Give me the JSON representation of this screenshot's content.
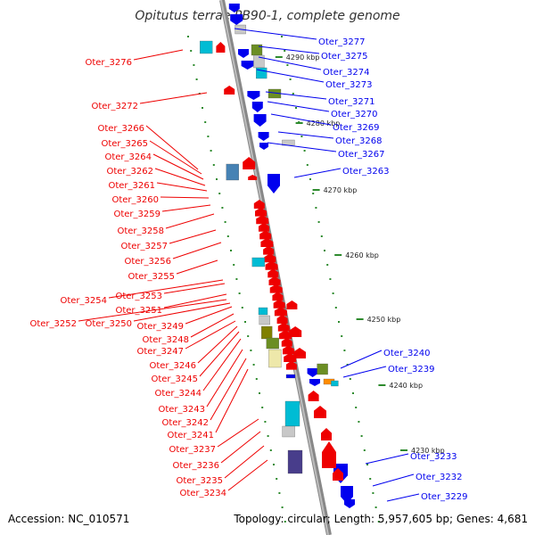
{
  "title": "Opitutus terrae PB90-1, complete genome",
  "footer": {
    "accession": "Accession: NC_010571",
    "summary": "Topology: circular; Length: 5,957,605 bp; Genes: 4,681"
  },
  "colors": {
    "forward_strand": "#0000ee",
    "reverse_strand": "#ee0000",
    "backbone": "#999999",
    "tick": "#228b22",
    "cds": "#0000ee",
    "rrna": "#00bcd4",
    "trna": "#808000",
    "other": "#c8c8c8"
  },
  "position_labels": [
    "4290 kbp",
    "4280 kbp",
    "4270 kbp",
    "4260 kbp",
    "4250 kbp",
    "4240 kbp",
    "4230 kbp"
  ],
  "forward_labels": [
    "Oter_3277",
    "Oter_3275",
    "Oter_3274",
    "Oter_3273",
    "Oter_3271",
    "Oter_3270",
    "Oter_3269",
    "Oter_3268",
    "Oter_3267",
    "Oter_3263",
    "Oter_3240",
    "Oter_3239",
    "Oter_3233",
    "Oter_3232",
    "Oter_3229"
  ],
  "reverse_labels": [
    "Oter_3276",
    "Oter_3272",
    "Oter_3266",
    "Oter_3265",
    "Oter_3264",
    "Oter_3262",
    "Oter_3261",
    "Oter_3260",
    "Oter_3259",
    "Oter_3258",
    "Oter_3257",
    "Oter_3256",
    "Oter_3255",
    "Oter_3254",
    "Oter_3253",
    "Oter_3251",
    "Oter_3252",
    "Oter_3250",
    "Oter_3249",
    "Oter_3248",
    "Oter_3247",
    "Oter_3246",
    "Oter_3245",
    "Oter_3244",
    "Oter_3243",
    "Oter_3242",
    "Oter_3241",
    "Oter_3237",
    "Oter_3236",
    "Oter_3235",
    "Oter_3234"
  ]
}
